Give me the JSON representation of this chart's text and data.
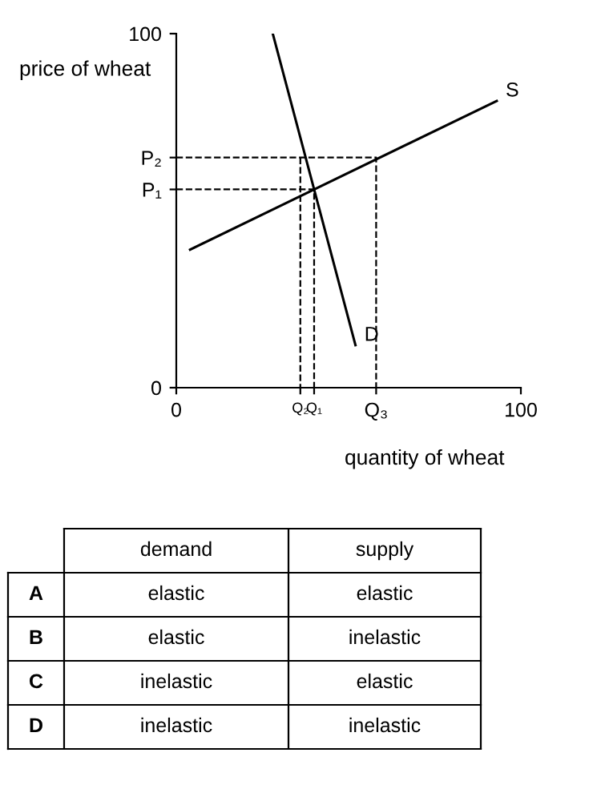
{
  "chart_data": {
    "type": "line",
    "xlabel": "quantity of wheat",
    "ylabel": "price of wheat",
    "xlim": [
      0,
      100
    ],
    "ylim": [
      0,
      100
    ],
    "xticks": [
      0,
      {
        "value": 36,
        "label": "Q₂"
      },
      {
        "value": 40,
        "label": "Q₁"
      },
      {
        "value": 58,
        "label": "Q₃"
      },
      100
    ],
    "yticks": [
      0,
      {
        "value": 56,
        "label": "P₁"
      },
      {
        "value": 65,
        "label": "P₂"
      },
      100
    ],
    "series": [
      {
        "color": "#000000",
        "x": [
          4,
          93
        ],
        "values": [
          39,
          81
        ]
      },
      {
        "color": "#000000",
        "x": [
          28,
          52
        ],
        "values": [
          100,
          12
        ]
      },
      {
        "color": "#000000",
        "x": [
          0,
          58,
          58
        ],
        "values": [
          65,
          65,
          0
        ],
        "line_style": "dashed"
      },
      {
        "color": "#000000",
        "x": [
          0,
          40,
          40
        ],
        "values": [
          56,
          56,
          0
        ],
        "line_style": "dashed"
      },
      {
        "color": "#000000",
        "x": [
          36,
          36
        ],
        "values": [
          65,
          0
        ],
        "line_style": "dashed"
      }
    ],
    "annotations": [
      {
        "text": "S",
        "x": 93,
        "y": 81
      },
      {
        "text": "D",
        "x": 52,
        "y": 12
      },
      "demand",
      "supply",
      "A",
      "elastic",
      "elastic",
      "B",
      "elastic",
      "inelastic",
      "C",
      "inelastic",
      "elastic",
      "D",
      "inelastic",
      "inelastic"
    ],
    "grid": false,
    "legend": false,
    "marker": "none",
    "line_style": "solid"
  }
}
